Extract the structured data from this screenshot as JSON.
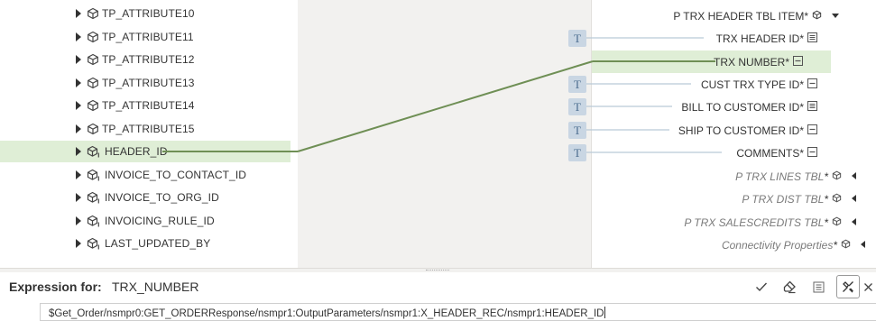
{
  "source_tree": {
    "items": [
      {
        "label": "TP_ATTRIBUTE10",
        "icon": "element-icon",
        "selected": false
      },
      {
        "label": "TP_ATTRIBUTE11",
        "icon": "element-icon",
        "selected": false
      },
      {
        "label": "TP_ATTRIBUTE12",
        "icon": "element-icon",
        "selected": false
      },
      {
        "label": "TP_ATTRIBUTE13",
        "icon": "element-icon",
        "selected": false
      },
      {
        "label": "TP_ATTRIBUTE14",
        "icon": "element-icon",
        "selected": false
      },
      {
        "label": "TP_ATTRIBUTE15",
        "icon": "element-icon",
        "selected": false
      },
      {
        "label": "HEADER_ID",
        "icon": "element-attr-icon",
        "selected": true
      },
      {
        "label": "INVOICE_TO_CONTACT_ID",
        "icon": "element-attr-icon",
        "selected": false
      },
      {
        "label": "INVOICE_TO_ORG_ID",
        "icon": "element-attr-icon",
        "selected": false
      },
      {
        "label": "INVOICING_RULE_ID",
        "icon": "element-attr-icon",
        "selected": false
      },
      {
        "label": "LAST_UPDATED_BY",
        "icon": "element-attr-icon",
        "selected": false
      }
    ]
  },
  "target_tree": {
    "header": {
      "label": "P TRX HEADER TBL ITEM",
      "required": "*"
    },
    "items": [
      {
        "label": "TRX HEADER ID",
        "required": "*",
        "type_icon": "number-type-icon",
        "mapped": "T",
        "selected": false
      },
      {
        "label": "TRX NUMBER",
        "required": "*",
        "type_icon": "string-type-icon",
        "mapped": "",
        "selected": true
      },
      {
        "label": "CUST TRX TYPE ID",
        "required": "*",
        "type_icon": "string-type-icon",
        "mapped": "T",
        "selected": false
      },
      {
        "label": "BILL TO CUSTOMER ID",
        "required": "*",
        "type_icon": "number-type-icon",
        "mapped": "T",
        "selected": false
      },
      {
        "label": "SHIP TO CUSTOMER ID",
        "required": "*",
        "type_icon": "string-type-icon",
        "mapped": "T",
        "selected": false
      },
      {
        "label": "COMMENTS",
        "required": "*",
        "type_icon": "string-type-icon",
        "mapped": "T",
        "selected": false
      }
    ],
    "collapsed": [
      {
        "label": "P TRX LINES TBL",
        "required": "*"
      },
      {
        "label": "P TRX DIST TBL",
        "required": "*"
      },
      {
        "label": "P TRX SALESCREDITS TBL",
        "required": "*"
      },
      {
        "label": "Connectivity Properties",
        "required": "*"
      }
    ]
  },
  "expression": {
    "title_label": "Expression for:",
    "field": "TRX_NUMBER",
    "value": "$Get_Order/nsmpr0:GET_ORDERResponse/nsmpr1:OutputParameters/nsmpr1:X_HEADER_REC/nsmpr1:HEADER_ID"
  },
  "toolbar": {
    "icons": [
      "checkmark-icon",
      "eraser-icon",
      "expression-builder-icon",
      "maximize-icon",
      "close-icon"
    ]
  },
  "colors": {
    "mapping_line": "#6f8f55",
    "selected_row": "#dfeed6",
    "connector_line": "#b9c9d8",
    "badge_bg": "#c9d6e3",
    "badge_text": "#4c6d8f",
    "canvas_bg": "#f2f1ef"
  }
}
